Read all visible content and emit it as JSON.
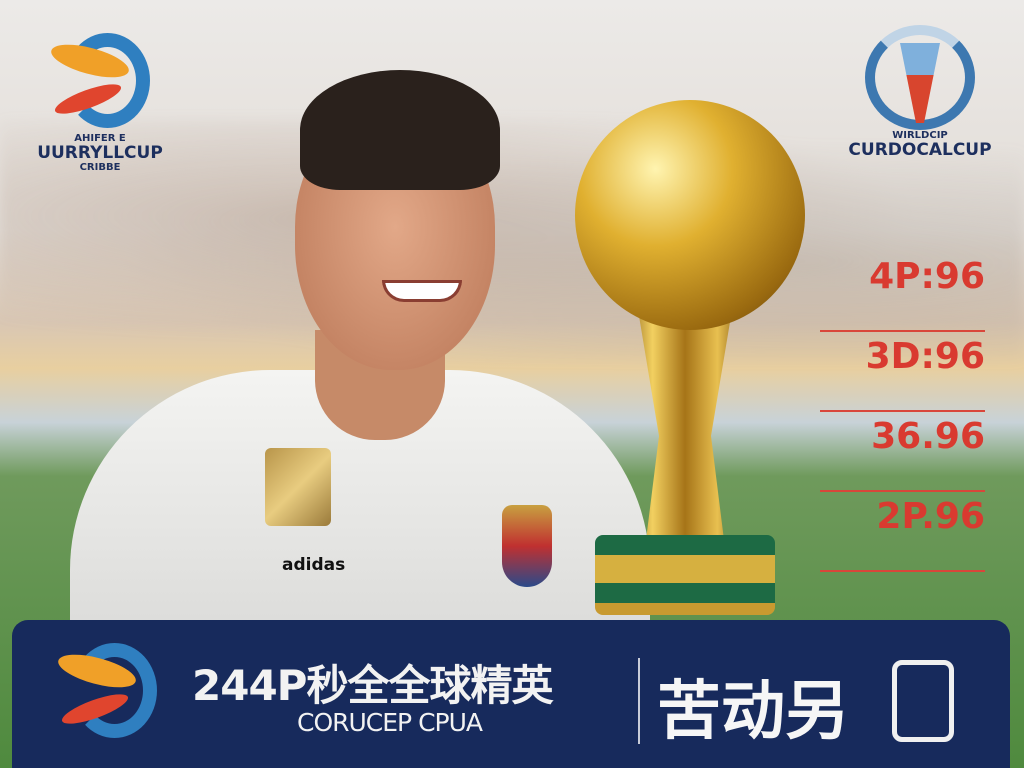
{
  "logo_left": {
    "top_line": "AHIFER E",
    "name": "UURRYLLCUP",
    "sub_line": "CRIBBE"
  },
  "logo_right": {
    "top_line": "WIRLDCIP",
    "name": "CURDOCALCUP"
  },
  "stats": [
    "4P:96",
    "3D:96",
    "36.96",
    "2P.96"
  ],
  "shirt": {
    "brand": "adidas"
  },
  "banner": {
    "title": "244P秒全全球精英",
    "subtitle": "CORUCEP CPUA",
    "big_text": "苦动另"
  },
  "colors": {
    "banner": "#172a5c",
    "stat_red": "#d93a30",
    "gold": "#e0b030"
  }
}
